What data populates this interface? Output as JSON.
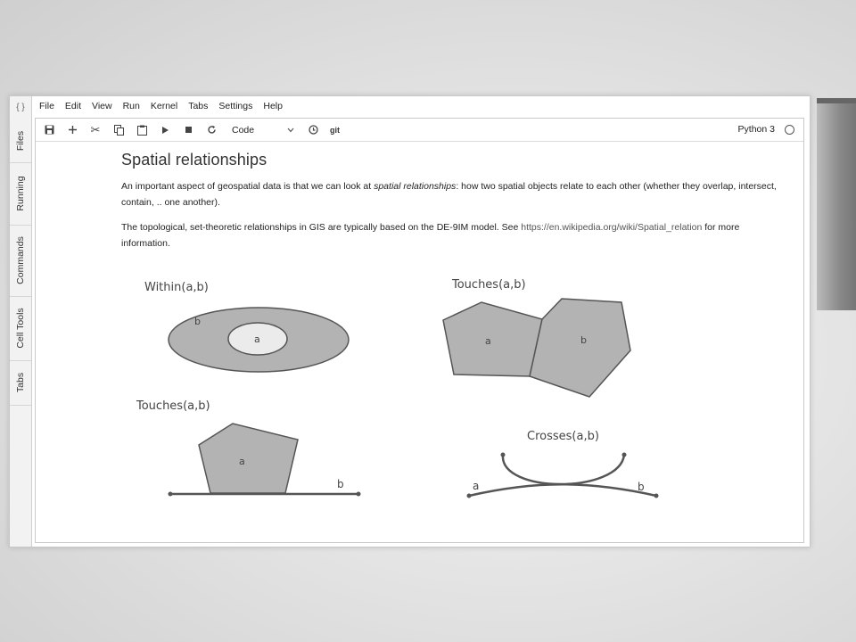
{
  "menubar": {
    "items": [
      "File",
      "Edit",
      "View",
      "Run",
      "Kernel",
      "Tabs",
      "Settings",
      "Help"
    ]
  },
  "sidebar": {
    "collapse_glyph": "{ }",
    "tabs": [
      "Files",
      "Running",
      "Commands",
      "Cell Tools",
      "Tabs"
    ]
  },
  "toolbar": {
    "cell_type": "Code",
    "git_label": "git",
    "kernel_name": "Python 3"
  },
  "cell": {
    "heading": "Spatial relationships",
    "para1_before": "An important aspect of geospatial data is that we can look at ",
    "para1_em": "spatial relationships",
    "para1_after": ": how two spatial objects relate to each other (whether they overlap, intersect, contain, .. one another).",
    "para2_before": "The topological, set-theoretic relationships in GIS are typically based on the DE-9IM model. See ",
    "para2_link": "https://en.wikipedia.org/wiki/Spatial_relation",
    "para2_after": " for more information."
  },
  "diagram": {
    "within": {
      "title": "Within(a,b)",
      "inner_label": "a",
      "outer_label": "b"
    },
    "touches_polygons": {
      "title": "Touches(a,b)",
      "label_a": "a",
      "label_b": "b"
    },
    "touches_line": {
      "title": "Touches(a,b)",
      "label_a": "a",
      "label_b": "b"
    },
    "crosses": {
      "title": "Crosses(a,b)",
      "label_a": "a",
      "label_b": "b"
    }
  },
  "colors": {
    "shape_fill": "#b3b3b3",
    "inner_fill": "#ebebeb",
    "stroke": "#555555"
  }
}
